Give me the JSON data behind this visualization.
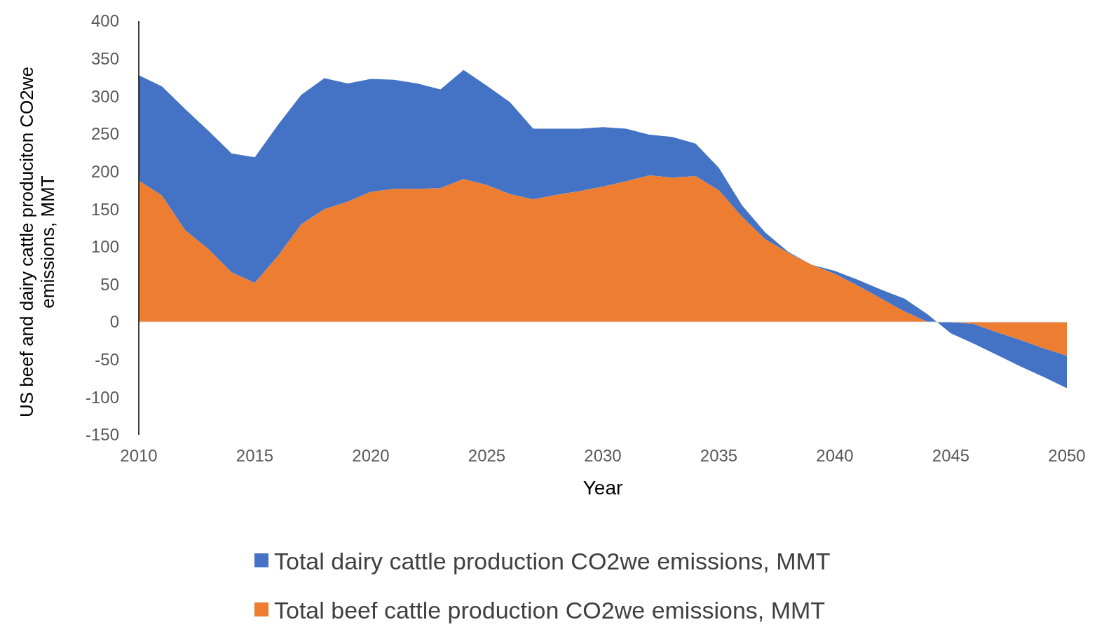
{
  "chart_data": {
    "type": "area",
    "stacked": true,
    "xlabel": "Year",
    "ylabel": "US beef and dairy cattle produciton CO2we emissions, MMT",
    "x": [
      2010,
      2011,
      2012,
      2013,
      2014,
      2015,
      2016,
      2017,
      2018,
      2019,
      2020,
      2021,
      2022,
      2023,
      2024,
      2025,
      2026,
      2027,
      2028,
      2029,
      2030,
      2031,
      2032,
      2033,
      2034,
      2035,
      2036,
      2037,
      2038,
      2039,
      2040,
      2041,
      2042,
      2043,
      2044,
      2045,
      2046,
      2047,
      2048,
      2049,
      2050
    ],
    "series": [
      {
        "name": "Total beef cattle production CO2we emissions, MMT",
        "color": "#ed7d31",
        "values": [
          188,
          168,
          122,
          97,
          66,
          52,
          88,
          130,
          150,
          160,
          173,
          177,
          177,
          178,
          190,
          182,
          170,
          163,
          169,
          174,
          180,
          187,
          195,
          192,
          194,
          175,
          140,
          110,
          92,
          76,
          64,
          48,
          31,
          14,
          0,
          0,
          -3,
          -14,
          -24,
          -35,
          -45
        ]
      },
      {
        "name": "Total dairy cattle production CO2we emissions, MMT",
        "color": "#4472c4",
        "values": [
          140,
          145,
          161,
          157,
          158,
          167,
          174,
          172,
          174,
          157,
          150,
          145,
          140,
          131,
          145,
          132,
          122,
          94,
          88,
          83,
          79,
          70,
          54,
          54,
          43,
          30,
          15,
          9,
          1,
          0,
          4,
          8,
          12,
          17,
          10,
          -15,
          -26,
          -30,
          -35,
          -38,
          -43
        ]
      }
    ],
    "xlim": [
      2010,
      2050
    ],
    "xticks": [
      2010,
      2015,
      2020,
      2025,
      2030,
      2035,
      2040,
      2045,
      2050
    ],
    "ylim": [
      -150,
      400
    ],
    "yticks": [
      -150,
      -100,
      -50,
      0,
      50,
      100,
      150,
      200,
      250,
      300,
      350,
      400
    ],
    "legend": "bottom"
  }
}
